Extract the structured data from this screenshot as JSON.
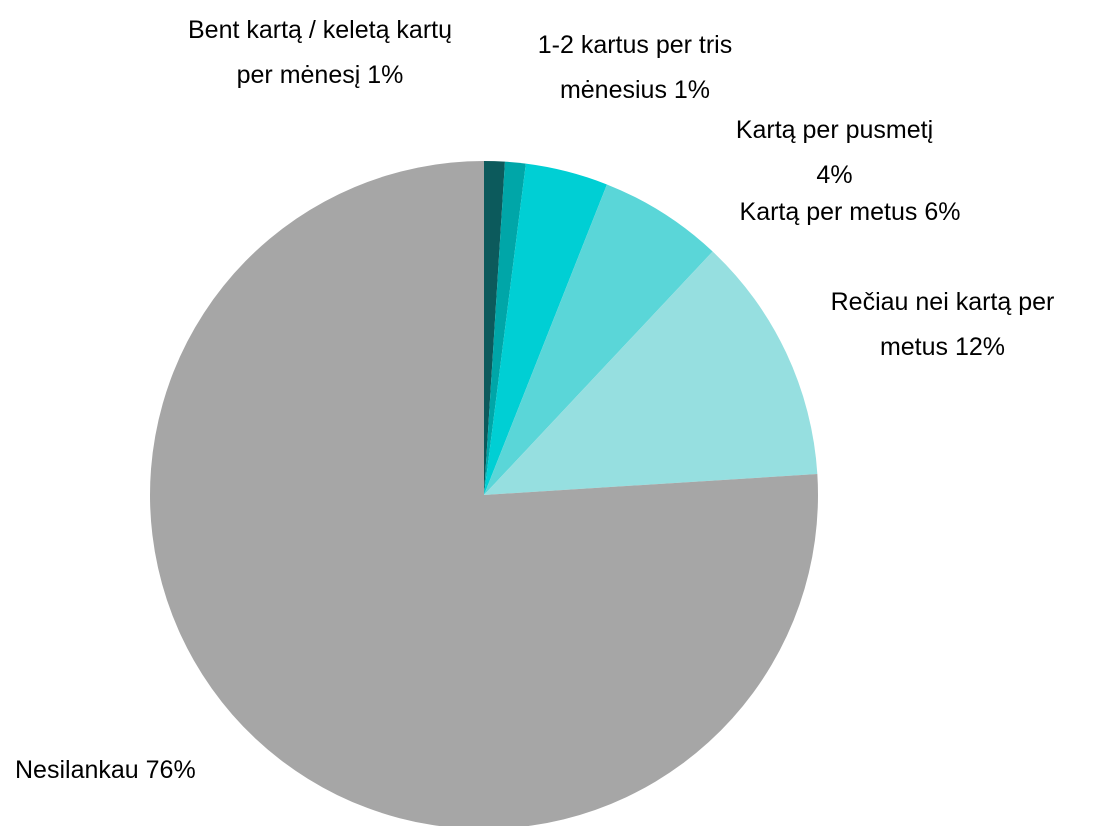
{
  "chart_data": {
    "type": "pie",
    "categories": [
      "Bent kartą / keletą kartų per mėnesį",
      "1-2 kartus per tris mėnesius",
      "Kartą per pusmetį",
      "Kartą per metus",
      "Rečiau nei kartą per metus",
      "Nesilankau"
    ],
    "values": [
      1,
      1,
      4,
      6,
      12,
      76
    ],
    "value_labels": [
      "1%",
      "1%",
      "4%",
      "6%",
      "12%",
      "76%"
    ],
    "colors": [
      "#0c5a5c",
      "#00a6a8",
      "#00cfd4",
      "#5ad6d8",
      "#96dfe0",
      "#a6a6a6"
    ]
  }
}
